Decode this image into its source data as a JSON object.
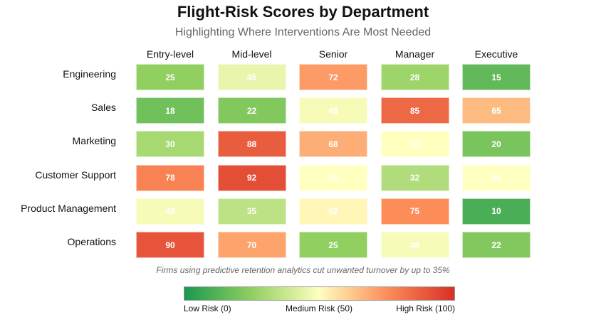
{
  "title": "Flight-Risk Scores by Department",
  "subtitle": "Highlighting Where Interventions Are Most Needed",
  "footnote": "Firms using predictive retention analytics cut unwanted turnover by up to 35%",
  "colorbar": {
    "low_label": "Low Risk (0)",
    "mid_label": "Medium Risk (50)",
    "high_label": "High Risk (100)",
    "range": [
      0,
      100
    ],
    "colors": [
      "#1a9850",
      "#91cf60",
      "#ffffbf",
      "#fc8d59",
      "#d73027"
    ]
  },
  "chart_data": {
    "type": "heatmap",
    "title": "Flight-Risk Scores by Department",
    "columns": [
      "Entry-level",
      "Mid-level",
      "Senior",
      "Manager",
      "Executive"
    ],
    "rows": [
      "Engineering",
      "Sales",
      "Marketing",
      "Customer Support",
      "Product Management",
      "Operations"
    ],
    "values": [
      [
        25,
        45,
        72,
        28,
        15
      ],
      [
        18,
        22,
        48,
        85,
        65
      ],
      [
        30,
        88,
        68,
        50,
        20
      ],
      [
        78,
        92,
        50,
        32,
        50
      ],
      [
        48,
        35,
        52,
        75,
        10
      ],
      [
        90,
        70,
        25,
        48,
        22
      ]
    ],
    "value_range": [
      0,
      100
    ]
  }
}
